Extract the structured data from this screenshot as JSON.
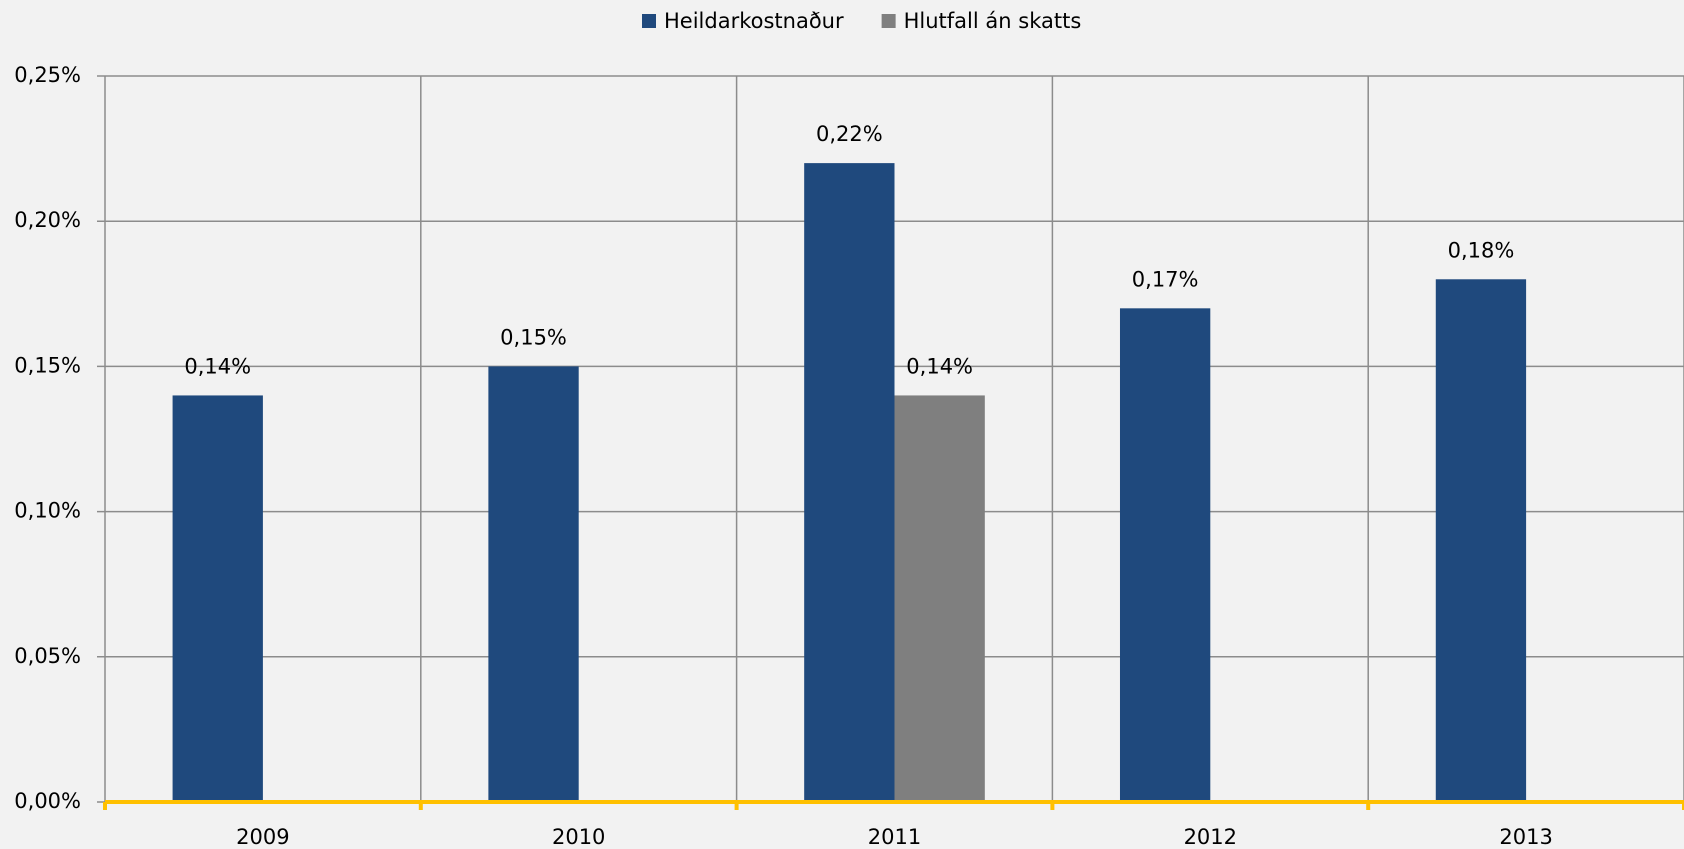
{
  "chart_data": {
    "type": "bar",
    "categories": [
      "2009",
      "2010",
      "2011",
      "2012",
      "2013"
    ],
    "series": [
      {
        "name": "Heildarkostnaður",
        "color": "#1f497d",
        "values": [
          0.14,
          0.15,
          0.22,
          0.17,
          0.18
        ],
        "value_labels": [
          "0,14%",
          "0,15%",
          "0,22%",
          "0,17%",
          "0,18%"
        ]
      },
      {
        "name": "Hlutfall án skatts",
        "color": "#7f7f7f",
        "values": [
          null,
          null,
          0.14,
          null,
          null
        ],
        "value_labels": [
          null,
          null,
          "0,14%",
          null,
          null
        ]
      }
    ],
    "ylim": [
      0,
      0.25
    ],
    "yticks": [
      {
        "value": 0,
        "label": "0,00%"
      },
      {
        "value": 0.05,
        "label": "0,05%"
      },
      {
        "value": 0.1,
        "label": "0,10%"
      },
      {
        "value": 0.15,
        "label": "0,15%"
      },
      {
        "value": 0.2,
        "label": "0,20%"
      },
      {
        "value": 0.25,
        "label": "0,25%"
      }
    ],
    "grid": true,
    "legend": "top"
  }
}
